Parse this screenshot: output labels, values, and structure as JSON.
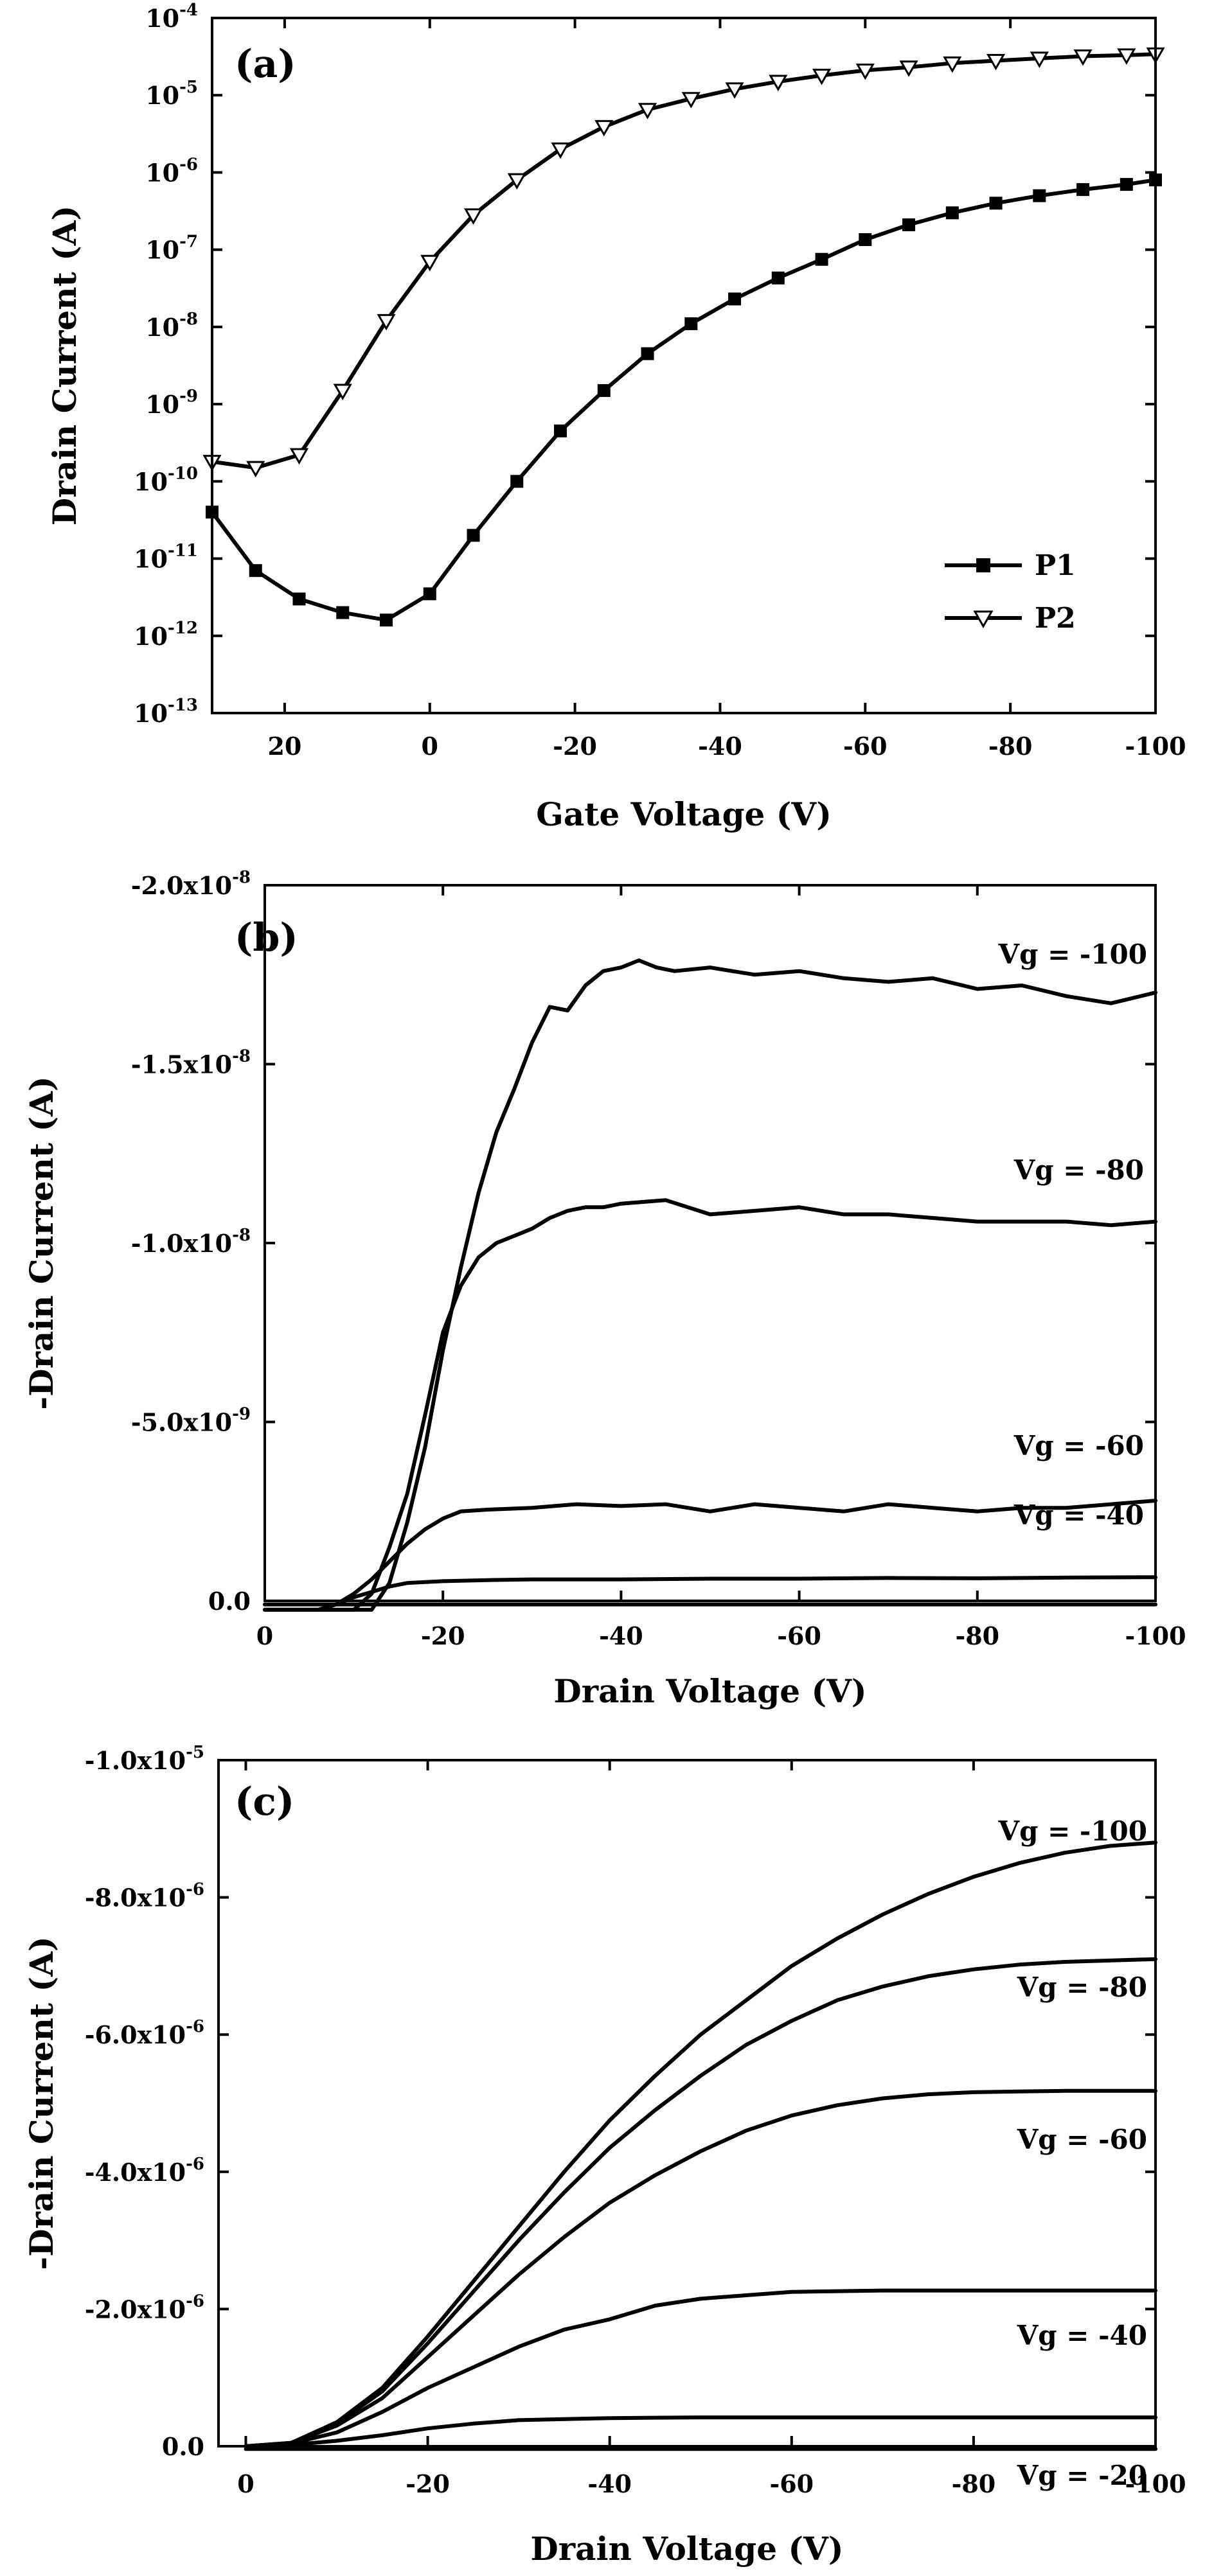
{
  "chart_data": [
    {
      "type": "line",
      "panel": "(a)",
      "xlabel": "Gate Voltage (V)",
      "ylabel": "Drain Current (A)",
      "x_scale": "linear, reversed",
      "y_scale": "log",
      "xlim": [
        30,
        -100
      ],
      "ylim": [
        1e-13,
        0.0001
      ],
      "x_ticks": [
        20,
        0,
        -20,
        -40,
        -60,
        -80,
        -100
      ],
      "x_tick_labels": [
        "20",
        "0",
        "-20",
        "-40",
        "-60",
        "-80",
        "-100"
      ],
      "y_ticks": [
        1e-13,
        1e-12,
        1e-11,
        1e-10,
        1e-09,
        1e-08,
        1e-07,
        1e-06,
        1e-05,
        0.0001
      ],
      "y_tick_labels": [
        {
          "base": "10",
          "exp": "-13"
        },
        {
          "base": "10",
          "exp": "-12"
        },
        {
          "base": "10",
          "exp": "-11"
        },
        {
          "base": "10",
          "exp": "-10"
        },
        {
          "base": "10",
          "exp": "-9"
        },
        {
          "base": "10",
          "exp": "-8"
        },
        {
          "base": "10",
          "exp": "-7"
        },
        {
          "base": "10",
          "exp": "-6"
        },
        {
          "base": "10",
          "exp": "-5"
        },
        {
          "base": "10",
          "exp": "-4"
        }
      ],
      "legend_position": "bottom-right",
      "series": [
        {
          "name": "P1",
          "marker": "filled-square",
          "x": [
            30,
            24,
            18,
            12,
            6,
            0,
            -6,
            -12,
            -18,
            -24,
            -30,
            -36,
            -42,
            -48,
            -54,
            -60,
            -66,
            -72,
            -78,
            -84,
            -90,
            -96,
            -100
          ],
          "y": [
            4e-11,
            7e-12,
            3e-12,
            2e-12,
            1.6e-12,
            3.5e-12,
            2e-11,
            1e-10,
            4.5e-10,
            1.5e-09,
            4.5e-09,
            1.1e-08,
            2.3e-08,
            4.3e-08,
            7.5e-08,
            1.35e-07,
            2.1e-07,
            3e-07,
            4e-07,
            5e-07,
            6e-07,
            7e-07,
            8e-07
          ]
        },
        {
          "name": "P2",
          "marker": "open-triangle-down",
          "x": [
            30,
            24,
            18,
            12,
            6,
            0,
            -6,
            -12,
            -18,
            -24,
            -30,
            -36,
            -42,
            -48,
            -54,
            -60,
            -66,
            -72,
            -78,
            -84,
            -90,
            -96,
            -100
          ],
          "y": [
            1.8e-10,
            1.5e-10,
            2.2e-10,
            1.5e-09,
            1.2e-08,
            7e-08,
            2.8e-07,
            8e-07,
            2e-06,
            3.9e-06,
            6.5e-06,
            9e-06,
            1.2e-05,
            1.5e-05,
            1.8e-05,
            2.1e-05,
            2.3e-05,
            2.6e-05,
            2.8e-05,
            3e-05,
            3.2e-05,
            3.3e-05,
            3.4e-05
          ]
        }
      ]
    },
    {
      "type": "line",
      "panel": "(b)",
      "xlabel": "Drain Voltage (V)",
      "ylabel": "-Drain Current (A)",
      "x_scale": "linear, reversed",
      "xlim": [
        0,
        -100
      ],
      "ylim": [
        0,
        -2e-08
      ],
      "x_ticks": [
        0,
        -20,
        -40,
        -60,
        -80,
        -100
      ],
      "x_tick_labels": [
        "0",
        "-20",
        "-40",
        "-60",
        "-80",
        "-100"
      ],
      "y_ticks": [
        0,
        -5e-09,
        -1e-08,
        -1.5e-08,
        -2e-08
      ],
      "y_tick_labels": [
        {
          "base": "0.0",
          "exp": ""
        },
        {
          "base": "-5.0x10",
          "exp": "-9"
        },
        {
          "base": "-1.0x10",
          "exp": "-8"
        },
        {
          "base": "-1.5x10",
          "exp": "-8"
        },
        {
          "base": "-2.0x10",
          "exp": "-8"
        }
      ],
      "series": [
        {
          "name": "Vg = -100",
          "x": [
            0,
            -8,
            -12,
            -14,
            -16,
            -18,
            -20,
            -22,
            -24,
            -26,
            -28,
            -30,
            -32,
            -34,
            -36,
            -38,
            -40,
            -42,
            -44,
            -46,
            -50,
            -55,
            -60,
            -65,
            -70,
            -75,
            -80,
            -85,
            -90,
            -95,
            -100
          ],
          "y": [
            2.5e-10,
            2.5e-10,
            2.5e-10,
            -5e-10,
            -2.2e-09,
            -4.3e-09,
            -7e-09,
            -9.3e-09,
            -1.14e-08,
            -1.31e-08,
            -1.43e-08,
            -1.56e-08,
            -1.66e-08,
            -1.65e-08,
            -1.72e-08,
            -1.76e-08,
            -1.77e-08,
            -1.79e-08,
            -1.77e-08,
            -1.76e-08,
            -1.77e-08,
            -1.75e-08,
            -1.76e-08,
            -1.74e-08,
            -1.73e-08,
            -1.74e-08,
            -1.71e-08,
            -1.72e-08,
            -1.69e-08,
            -1.67e-08,
            -1.7e-08
          ]
        },
        {
          "name": "Vg = -80",
          "x": [
            0,
            -8,
            -10,
            -12,
            -14,
            -16,
            -18,
            -20,
            -22,
            -24,
            -26,
            -28,
            -30,
            -32,
            -34,
            -36,
            -38,
            -40,
            -45,
            -50,
            -55,
            -60,
            -65,
            -70,
            -75,
            -80,
            -85,
            -90,
            -95,
            -100
          ],
          "y": [
            2.5e-10,
            2.5e-10,
            2.5e-10,
            -2e-10,
            -1.5e-09,
            -3e-09,
            -5.2e-09,
            -7.5e-09,
            -8.8e-09,
            -9.6e-09,
            -1e-08,
            -1.02e-08,
            -1.04e-08,
            -1.07e-08,
            -1.09e-08,
            -1.1e-08,
            -1.1e-08,
            -1.11e-08,
            -1.12e-08,
            -1.08e-08,
            -1.09e-08,
            -1.1e-08,
            -1.08e-08,
            -1.08e-08,
            -1.07e-08,
            -1.06e-08,
            -1.06e-08,
            -1.06e-08,
            -1.05e-08,
            -1.06e-08
          ]
        },
        {
          "name": "Vg = -60",
          "x": [
            0,
            -6,
            -8,
            -10,
            -12,
            -14,
            -16,
            -18,
            -20,
            -22,
            -25,
            -30,
            -35,
            -40,
            -45,
            -50,
            -55,
            -60,
            -65,
            -70,
            -75,
            -80,
            -85,
            -90,
            -95,
            -100
          ],
          "y": [
            2.5e-10,
            2.5e-10,
            1e-10,
            -2e-10,
            -6e-10,
            -1.1e-09,
            -1.6e-09,
            -2e-09,
            -2.3e-09,
            -2.5e-09,
            -2.55e-09,
            -2.6e-09,
            -2.7e-09,
            -2.65e-09,
            -2.7e-09,
            -2.5e-09,
            -2.7e-09,
            -2.6e-09,
            -2.5e-09,
            -2.7e-09,
            -2.6e-09,
            -2.5e-09,
            -2.6e-09,
            -2.6e-09,
            -2.7e-09,
            -2.8e-09
          ]
        },
        {
          "name": "Vg = -40",
          "x": [
            0,
            -6,
            -8,
            -10,
            -12,
            -14,
            -16,
            -20,
            -25,
            -30,
            -40,
            -50,
            -60,
            -70,
            -80,
            -90,
            -100
          ],
          "y": [
            2.5e-10,
            2.5e-10,
            1e-10,
            -1e-10,
            -2.5e-10,
            -4e-10,
            -5e-10,
            -5.5e-10,
            -5.8e-10,
            -6e-10,
            -6e-10,
            -6.2e-10,
            -6.2e-10,
            -6.4e-10,
            -6.3e-10,
            -6.5e-10,
            -6.6e-10
          ]
        },
        {
          "name": "",
          "x": [
            0,
            -10,
            -20,
            -40,
            -60,
            -80,
            -100
          ],
          "y": [
            1e-10,
            1e-10,
            1e-10,
            1e-10,
            1e-10,
            1e-10,
            1e-10
          ]
        }
      ]
    },
    {
      "type": "line",
      "panel": "(c)",
      "xlabel": "Drain Voltage (V)",
      "ylabel": "-Drain Current (A)",
      "x_scale": "linear, reversed",
      "xlim": [
        3,
        -100
      ],
      "ylim": [
        0,
        -1e-05
      ],
      "x_ticks": [
        0,
        -20,
        -40,
        -60,
        -80,
        -100
      ],
      "x_tick_labels": [
        "0",
        "-20",
        "-40",
        "-60",
        "-80",
        "-100"
      ],
      "y_ticks": [
        0,
        -2e-06,
        -4e-06,
        -6e-06,
        -8e-06,
        -1e-05
      ],
      "y_tick_labels": [
        {
          "base": "0.0",
          "exp": ""
        },
        {
          "base": "-2.0x10",
          "exp": "-6"
        },
        {
          "base": "-4.0x10",
          "exp": "-6"
        },
        {
          "base": "-6.0x10",
          "exp": "-6"
        },
        {
          "base": "-8.0x10",
          "exp": "-6"
        },
        {
          "base": "-1.0x10",
          "exp": "-5"
        }
      ],
      "series": [
        {
          "name": "Vg = -100",
          "x": [
            0,
            -5,
            -10,
            -15,
            -20,
            -25,
            -30,
            -35,
            -40,
            -45,
            -50,
            -55,
            -60,
            -65,
            -70,
            -75,
            -80,
            -85,
            -90,
            -95,
            -100
          ],
          "y": [
            0,
            -5e-08,
            -3.5e-07,
            -8.5e-07,
            -1.6e-06,
            -2.4e-06,
            -3.2e-06,
            -4e-06,
            -4.75e-06,
            -5.4e-06,
            -6e-06,
            -6.5e-06,
            -7e-06,
            -7.4e-06,
            -7.75e-06,
            -8.05e-06,
            -8.3e-06,
            -8.5e-06,
            -8.65e-06,
            -8.75e-06,
            -8.8e-06
          ]
        },
        {
          "name": "Vg = -80",
          "x": [
            0,
            -5,
            -10,
            -15,
            -20,
            -25,
            -30,
            -35,
            -40,
            -45,
            -50,
            -55,
            -60,
            -65,
            -70,
            -75,
            -80,
            -85,
            -90,
            -95,
            -100
          ],
          "y": [
            0,
            -5e-08,
            -3.3e-07,
            -8e-07,
            -1.5e-06,
            -2.25e-06,
            -3e-06,
            -3.7e-06,
            -4.35e-06,
            -4.9e-06,
            -5.4e-06,
            -5.85e-06,
            -6.2e-06,
            -6.5e-06,
            -6.7e-06,
            -6.85e-06,
            -6.95e-06,
            -7.02e-06,
            -7.06e-06,
            -7.08e-06,
            -7.1e-06
          ]
        },
        {
          "name": "Vg = -60",
          "x": [
            0,
            -5,
            -10,
            -15,
            -20,
            -25,
            -30,
            -35,
            -40,
            -45,
            -50,
            -55,
            -60,
            -65,
            -70,
            -75,
            -80,
            -85,
            -90,
            -95,
            -100
          ],
          "y": [
            0,
            -5e-08,
            -3e-07,
            -7e-07,
            -1.3e-06,
            -1.9e-06,
            -2.5e-06,
            -3.05e-06,
            -3.55e-06,
            -3.95e-06,
            -4.3e-06,
            -4.6e-06,
            -4.82e-06,
            -4.97e-06,
            -5.07e-06,
            -5.13e-06,
            -5.16e-06,
            -5.17e-06,
            -5.18e-06,
            -5.18e-06,
            -5.18e-06
          ]
        },
        {
          "name": "Vg = -40",
          "x": [
            0,
            -5,
            -10,
            -15,
            -20,
            -25,
            -30,
            -35,
            -40,
            -45,
            -50,
            -55,
            -60,
            -70,
            -80,
            -90,
            -100
          ],
          "y": [
            0,
            -4e-08,
            -2e-07,
            -5e-07,
            -8.5e-07,
            -1.15e-06,
            -1.45e-06,
            -1.7e-06,
            -1.85e-06,
            -2.05e-06,
            -2.15e-06,
            -2.2e-06,
            -2.25e-06,
            -2.27e-06,
            -2.27e-06,
            -2.27e-06,
            -2.27e-06
          ]
        },
        {
          "name": "Vg = -20",
          "x": [
            0,
            -5,
            -10,
            -15,
            -20,
            -25,
            -30,
            -40,
            -50,
            -60,
            -70,
            -80,
            -90,
            -100
          ],
          "y": [
            0,
            -2e-08,
            -8e-08,
            -1.6e-07,
            -2.6e-07,
            -3.3e-07,
            -3.8e-07,
            -4.1e-07,
            -4.2e-07,
            -4.2e-07,
            -4.2e-07,
            -4.2e-07,
            -4.2e-07,
            -4.2e-07
          ]
        },
        {
          "name": "",
          "x": [
            0,
            -20,
            -40,
            -60,
            -80,
            -100
          ],
          "y": [
            4e-08,
            4e-08,
            4e-08,
            4e-08,
            4e-08,
            4e-08
          ]
        }
      ]
    }
  ]
}
